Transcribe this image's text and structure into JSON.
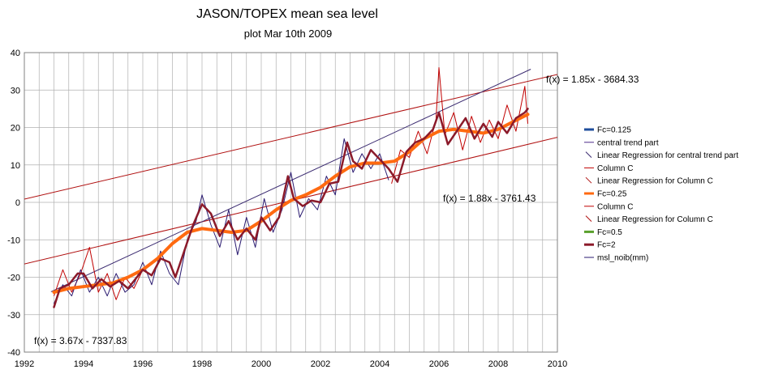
{
  "chart_data": {
    "type": "line",
    "title": "JASON/TOPEX mean sea level",
    "subtitle": "plot Mar 10th 2009",
    "xlabel": "",
    "ylabel": "",
    "xlim": [
      1992,
      2010
    ],
    "ylim": [
      -40,
      40
    ],
    "x_ticks": [
      "1992",
      "1994",
      "1996",
      "1998",
      "2000",
      "2002",
      "2004",
      "2006",
      "2008",
      "2010"
    ],
    "y_ticks": [
      "40",
      "30",
      "20",
      "10",
      "0",
      "-10",
      "-20",
      "-30",
      "-40"
    ],
    "grid": true,
    "legend_position": "right",
    "colors": {
      "fc0125": "#1f4e9c",
      "trend": "#4b2a8a",
      "regression": "#3a2a70",
      "columnC": "#c00000",
      "regC": "#b01010",
      "fc025": "#ff6a10",
      "fc05": "#5aa02c",
      "fc2": "#8b1a2a",
      "msl": "#2a1a70",
      "grid": "#b0b0b0",
      "axis": "#808080"
    },
    "legend": [
      {
        "label": "Fc=0.125",
        "color": "#1f4e9c",
        "style": "thick"
      },
      {
        "label": "central trend part",
        "color": "#4b2a8a",
        "style": "thin"
      },
      {
        "label": "Linear Regression for central trend part",
        "color": "#3a2a70",
        "style": "diag"
      },
      {
        "label": "Column C",
        "color": "#c00000",
        "style": "thin"
      },
      {
        "label": "Linear Regression for Column C",
        "color": "#b01010",
        "style": "diag"
      },
      {
        "label": "Fc=0.25",
        "color": "#ff6a10",
        "style": "thick"
      },
      {
        "label": "Column C",
        "color": "#c00000",
        "style": "thin"
      },
      {
        "label": "Linear Regression for Column C",
        "color": "#b01010",
        "style": "diag"
      },
      {
        "label": "Fc=0.5",
        "color": "#5aa02c",
        "style": "thick"
      },
      {
        "label": "Fc=2",
        "color": "#8b1a2a",
        "style": "thick"
      },
      {
        "label": "msl_noib(mm)",
        "color": "#2a1a70",
        "style": "thin"
      }
    ],
    "regression_lines": [
      {
        "label": "f(x) = 1.85x - 3684.33",
        "slope": 1.85,
        "intercept": -3684.33,
        "x": [
          1992,
          2010
        ],
        "color": "#b01010"
      },
      {
        "label": "f(x) = 1.88x - 3761.43",
        "slope": 1.88,
        "intercept": -3761.43,
        "x": [
          1992,
          2010
        ],
        "color": "#b01010"
      },
      {
        "label": "f(x) = 3.67x - 7337.83",
        "slope": 3.67,
        "intercept": -7337.83,
        "x": [
          1992.9,
          2009.1
        ],
        "color": "#3a2a70"
      }
    ],
    "series": [
      {
        "name": "Fc=0.25",
        "x": [
          1993.0,
          1993.5,
          1994.0,
          1994.5,
          1995.0,
          1995.5,
          1996.0,
          1996.5,
          1997.0,
          1997.5,
          1998.0,
          1998.5,
          1999.0,
          1999.5,
          2000.0,
          2000.5,
          2001.0,
          2001.5,
          2002.0,
          2002.5,
          2003.0,
          2003.5,
          2004.0,
          2004.5,
          2005.0,
          2005.5,
          2006.0,
          2006.5,
          2007.0,
          2007.5,
          2008.0,
          2008.5,
          2009.0
        ],
        "y": [
          -24,
          -23,
          -22.5,
          -22,
          -21.5,
          -20,
          -18,
          -15,
          -11,
          -8,
          -7,
          -7.5,
          -8,
          -7.5,
          -5,
          -2,
          0.5,
          2,
          4,
          7,
          9.5,
          10.5,
          10.5,
          11,
          13.5,
          17,
          19,
          19.5,
          19,
          18.5,
          19.5,
          21.5,
          23.5
        ]
      },
      {
        "name": "Fc=2",
        "x": [
          1993.0,
          1993.2,
          1993.5,
          1993.8,
          1994.0,
          1994.3,
          1994.6,
          1994.9,
          1995.2,
          1995.5,
          1995.8,
          1996.0,
          1996.3,
          1996.6,
          1996.9,
          1997.1,
          1997.4,
          1997.7,
          1998.0,
          1998.3,
          1998.6,
          1998.9,
          1999.2,
          1999.5,
          1999.8,
          2000.0,
          2000.3,
          2000.6,
          2000.9,
          2001.1,
          2001.4,
          2001.7,
          2002.0,
          2002.3,
          2002.6,
          2002.9,
          2003.1,
          2003.4,
          2003.7,
          2004.0,
          2004.3,
          2004.6,
          2004.9,
          2005.2,
          2005.5,
          2005.8,
          2006.0,
          2006.3,
          2006.6,
          2006.9,
          2007.2,
          2007.5,
          2007.8,
          2008.0,
          2008.3,
          2008.6,
          2008.9,
          2009.0
        ],
        "y": [
          -28,
          -23,
          -22,
          -19,
          -19,
          -23,
          -20.5,
          -22.5,
          -21,
          -23,
          -20,
          -18,
          -19.5,
          -15,
          -16,
          -20,
          -13,
          -6,
          -0.5,
          -3,
          -9,
          -5,
          -10,
          -7,
          -10,
          -4,
          -7.5,
          -4,
          7,
          1,
          -1,
          0.5,
          0,
          5,
          5.5,
          16,
          11,
          9,
          14,
          11.5,
          9,
          5.5,
          13.5,
          16,
          17,
          19.5,
          24,
          15.5,
          19,
          22.5,
          17,
          21,
          17.5,
          21.5,
          18.5,
          22.5,
          24,
          25
        ]
      },
      {
        "name": "msl_noib(mm)",
        "x": [
          1993.0,
          1993.3,
          1993.6,
          1993.9,
          1994.2,
          1994.5,
          1994.8,
          1995.1,
          1995.4,
          1995.7,
          1996.0,
          1996.3,
          1996.6,
          1996.9,
          1997.2,
          1997.5,
          1997.8,
          1998.0,
          1998.3,
          1998.6,
          1998.9,
          1999.2,
          1999.5,
          1999.8,
          2000.1,
          2000.4,
          2000.7,
          2001.0,
          2001.3,
          2001.6,
          2001.9,
          2002.2,
          2002.5,
          2002.8,
          2003.1,
          2003.4,
          2003.7,
          2004.0,
          2004.3
        ],
        "y": [
          -27,
          -22,
          -25,
          -18,
          -24,
          -20,
          -25,
          -19,
          -24,
          -22,
          -16,
          -22,
          -13,
          -19,
          -22,
          -10,
          -5,
          2,
          -6,
          -12,
          -2,
          -14,
          -4,
          -12,
          1,
          -8,
          -2,
          8,
          -4,
          1,
          -2,
          7,
          2,
          17,
          8,
          13,
          9,
          13,
          6
        ]
      },
      {
        "name": "Column C",
        "x": [
          1993.0,
          1993.3,
          1993.6,
          1993.9,
          1994.2,
          1994.5,
          1994.8,
          1995.1,
          1995.4,
          1995.7,
          1996.0,
          2004.4,
          2004.7,
          2005.0,
          2005.3,
          2005.6,
          2005.9,
          2006.0,
          2006.2,
          2006.5,
          2006.8,
          2007.1,
          2007.4,
          2007.7,
          2008.0,
          2008.3,
          2008.6,
          2008.9,
          2009.0
        ],
        "y": [
          -25,
          -18,
          -24,
          -19,
          -12,
          -24,
          -19,
          -26,
          -20,
          -23,
          -18,
          5,
          14,
          12,
          19,
          13,
          22,
          36,
          18,
          24,
          14,
          23,
          16,
          22,
          17,
          26,
          19,
          31,
          21
        ]
      }
    ],
    "annotations": [
      "f(x) = 1.85x - 3684.33",
      "f(x) = 1.88x - 3761.43",
      "f(x) = 3.67x - 7337.83"
    ]
  }
}
